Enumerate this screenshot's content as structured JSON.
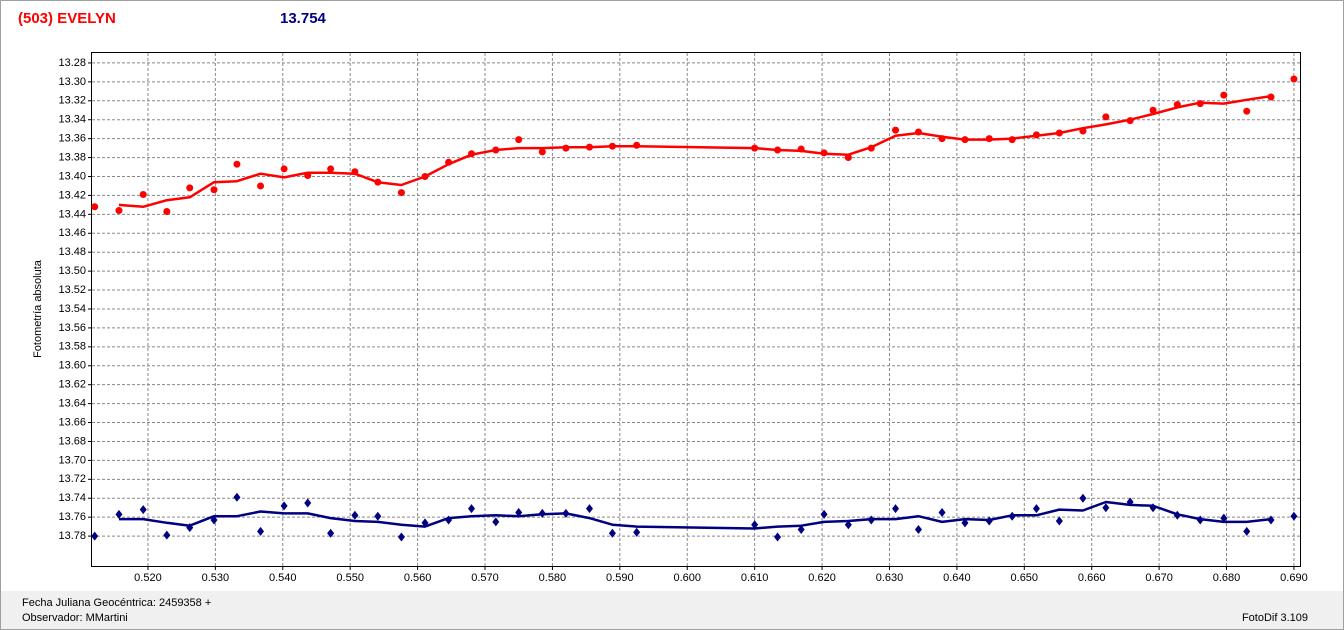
{
  "chart_data": {
    "type": "line",
    "title": "(503) EVELYN",
    "title_color": "#ff0000",
    "subtitle": "13.754",
    "subtitle_color": "#000080",
    "y_label": "Fotometría absoluta",
    "footer": {
      "date_label": "Fecha Juliana Geocéntrica: 2459358 +",
      "observer": "Observador: MMartini",
      "software": "FotoDif 3.109"
    },
    "grid": true,
    "y_inverted": true,
    "xlim": [
      0.5117,
      0.6909
    ],
    "ylim": [
      13.2695,
      13.8116
    ],
    "xticks": [
      {
        "value": 0.52,
        "label": "0.520"
      },
      {
        "value": 0.53,
        "label": "0.530"
      },
      {
        "value": 0.54,
        "label": "0.540"
      },
      {
        "value": 0.55,
        "label": "0.550"
      },
      {
        "value": 0.56,
        "label": "0.560"
      },
      {
        "value": 0.57,
        "label": "0.570"
      },
      {
        "value": 0.58,
        "label": "0.580"
      },
      {
        "value": 0.59,
        "label": "0.590"
      },
      {
        "value": 0.6,
        "label": "0.600"
      },
      {
        "value": 0.61,
        "label": "0.610"
      },
      {
        "value": 0.62,
        "label": "0.620"
      },
      {
        "value": 0.63,
        "label": "0.630"
      },
      {
        "value": 0.64,
        "label": "0.640"
      },
      {
        "value": 0.65,
        "label": "0.650"
      },
      {
        "value": 0.66,
        "label": "0.660"
      },
      {
        "value": 0.67,
        "label": "0.670"
      },
      {
        "value": 0.68,
        "label": "0.680"
      },
      {
        "value": 0.69,
        "label": "0.690"
      }
    ],
    "yticks": [
      13.28,
      {
        "value": 13.3,
        "label": "13.30"
      },
      13.32,
      13.34,
      13.36,
      13.38,
      {
        "value": 13.4,
        "label": "13.40"
      },
      13.42,
      13.44,
      13.46,
      13.48,
      {
        "value": 13.5,
        "label": "13.50"
      },
      13.52,
      13.54,
      13.56,
      13.58,
      {
        "value": 13.6,
        "label": "13.60"
      },
      13.62,
      13.64,
      13.66,
      13.68,
      {
        "value": 13.7,
        "label": "13.70"
      },
      13.72,
      13.74,
      13.76,
      13.78
    ],
    "x": [
      0.5121,
      0.5157,
      0.5193,
      0.5228,
      0.5262,
      0.5298,
      0.5332,
      0.5367,
      0.5402,
      0.5437,
      0.5471,
      0.5507,
      0.5541,
      0.5576,
      0.5611,
      0.5646,
      0.568,
      0.5716,
      0.575,
      0.5785,
      0.582,
      0.5855,
      0.5889,
      0.5925,
      0.61,
      0.6134,
      0.6169,
      0.6203,
      0.6239,
      0.6273,
      0.6309,
      0.6343,
      0.6378,
      0.6412,
      0.6448,
      0.6482,
      0.6518,
      0.6552,
      0.6587,
      0.6621,
      0.6657,
      0.6691,
      0.6727,
      0.6761,
      0.6796,
      0.683,
      0.6866,
      0.69
    ],
    "series": [
      {
        "color": "#ff0000",
        "style": "markers",
        "marker": "circle",
        "values": [
          13.432,
          13.436,
          13.419,
          13.437,
          13.412,
          13.414,
          13.387,
          13.41,
          13.392,
          13.399,
          13.392,
          13.395,
          13.406,
          13.417,
          13.4,
          13.385,
          13.376,
          13.372,
          13.361,
          13.374,
          13.37,
          13.369,
          13.368,
          13.367,
          13.37,
          13.372,
          13.371,
          13.375,
          13.38,
          13.37,
          13.351,
          13.353,
          13.36,
          13.361,
          13.36,
          13.361,
          13.356,
          13.354,
          13.352,
          13.337,
          13.341,
          13.33,
          13.324,
          13.323,
          13.314,
          13.331,
          13.316,
          13.297
        ]
      },
      {
        "color": "#ff0000",
        "style": "line",
        "values": [
          null,
          13.43,
          13.432,
          13.425,
          13.422,
          13.406,
          13.405,
          13.397,
          13.401,
          13.396,
          13.396,
          13.397,
          13.406,
          13.409,
          13.4,
          13.387,
          13.377,
          13.372,
          13.37,
          13.37,
          13.369,
          13.369,
          13.368,
          13.368,
          13.37,
          13.372,
          13.373,
          13.376,
          13.377,
          13.369,
          13.357,
          13.354,
          13.358,
          13.361,
          13.361,
          13.36,
          13.357,
          13.354,
          13.349,
          13.345,
          13.34,
          13.334,
          13.327,
          13.322,
          13.323,
          13.319,
          13.315,
          null
        ]
      },
      {
        "color": "#000080",
        "style": "markers",
        "marker": "diamond",
        "values": [
          13.78,
          13.757,
          13.752,
          13.779,
          13.771,
          13.763,
          13.739,
          13.775,
          13.748,
          13.745,
          13.777,
          13.758,
          13.759,
          13.781,
          13.766,
          13.763,
          13.751,
          13.765,
          13.755,
          13.756,
          13.756,
          13.751,
          13.777,
          13.776,
          13.768,
          13.781,
          13.773,
          13.757,
          13.768,
          13.763,
          13.751,
          13.773,
          13.755,
          13.766,
          13.764,
          13.759,
          13.751,
          13.764,
          13.74,
          13.75,
          13.744,
          13.75,
          13.758,
          13.763,
          13.761,
          13.775,
          13.763,
          13.759
        ]
      },
      {
        "color": "#000080",
        "style": "line",
        "values": [
          null,
          13.762,
          13.762,
          13.766,
          13.769,
          13.759,
          13.759,
          13.754,
          13.756,
          13.756,
          13.761,
          13.764,
          13.765,
          13.768,
          13.77,
          13.761,
          13.759,
          13.758,
          13.759,
          13.757,
          13.756,
          13.761,
          13.768,
          13.77,
          13.772,
          13.77,
          13.769,
          13.765,
          13.764,
          13.762,
          13.762,
          13.759,
          13.765,
          13.762,
          13.763,
          13.758,
          13.758,
          13.752,
          13.753,
          13.744,
          13.747,
          13.748,
          13.757,
          13.762,
          13.765,
          13.765,
          13.762,
          null
        ]
      }
    ]
  }
}
